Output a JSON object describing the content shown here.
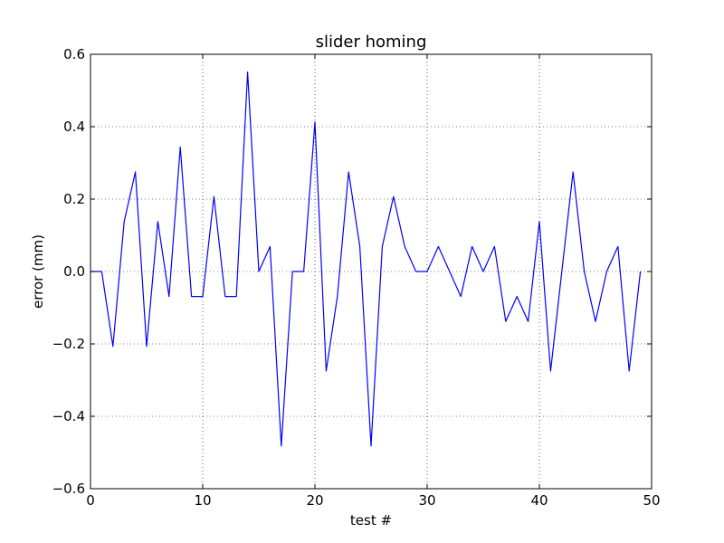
{
  "chart_data": {
    "type": "line",
    "title": "slider homing",
    "xlabel": "test #",
    "ylabel": "error (mm)",
    "xlim": [
      0,
      50
    ],
    "ylim": [
      -0.6,
      0.6
    ],
    "x_ticks": [
      0,
      10,
      20,
      30,
      40,
      50
    ],
    "x_tick_labels": [
      "0",
      "10",
      "20",
      "30",
      "40",
      "50"
    ],
    "y_ticks": [
      -0.6,
      -0.4,
      -0.2,
      0.0,
      0.2,
      0.4,
      0.6
    ],
    "y_tick_labels": [
      "−0.6",
      "−0.4",
      "−0.2",
      "0.0",
      "0.2",
      "0.4",
      "0.6"
    ],
    "grid": true,
    "series": [
      {
        "color": "#0000ff",
        "x": [
          0,
          1,
          2,
          3,
          4,
          5,
          6,
          7,
          8,
          9,
          10,
          11,
          12,
          13,
          14,
          15,
          16,
          17,
          18,
          19,
          20,
          21,
          22,
          23,
          24,
          25,
          26,
          27,
          28,
          29,
          30,
          31,
          32,
          33,
          34,
          35,
          36,
          37,
          38,
          39,
          40,
          41,
          42,
          43,
          44,
          45,
          46,
          47,
          48,
          49
        ],
        "y": [
          0,
          0,
          -0.207,
          0.138,
          0.275,
          -0.207,
          0.138,
          -0.069,
          0.344,
          -0.069,
          -0.069,
          0.207,
          -0.069,
          -0.069,
          0.551,
          0,
          0.069,
          -0.482,
          0,
          0,
          0.413,
          -0.275,
          -0.069,
          0.275,
          0.069,
          -0.482,
          0.069,
          0.207,
          0.069,
          0,
          0,
          0.069,
          0,
          -0.069,
          0.069,
          0,
          0.069,
          -0.138,
          -0.069,
          -0.138,
          0.138,
          -0.275,
          0,
          0.275,
          0,
          -0.138,
          0,
          0.069,
          -0.275,
          0
        ]
      }
    ]
  }
}
